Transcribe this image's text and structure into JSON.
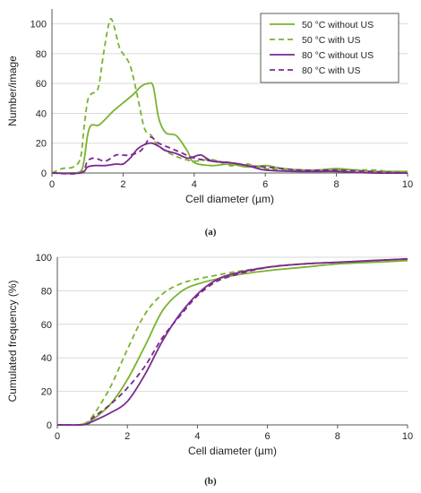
{
  "colors": {
    "green": "#7ab32e",
    "purple": "#7b2a8e",
    "axis": "#555555",
    "grid": "#d9d9d9"
  },
  "chart_data": [
    {
      "type": "line",
      "panel_label": "(a)",
      "xlabel": "Cell diameter (µm)",
      "ylabel": "Number/image",
      "xlim": [
        0,
        10
      ],
      "ylim": [
        0,
        110
      ],
      "xticks": [
        "0",
        "2",
        "4",
        "6",
        "8",
        "10"
      ],
      "yticks": [
        "0",
        "20",
        "40",
        "60",
        "80",
        "100"
      ],
      "grid": "horizontal",
      "legend_position": "top-right",
      "series": [
        {
          "name": "50 °C without US",
          "color": "#7ab32e",
          "dash": false,
          "x": [
            0,
            0.5,
            0.8,
            0.9,
            1.0,
            1.1,
            1.3,
            1.5,
            1.7,
            2.0,
            2.3,
            2.5,
            2.7,
            2.85,
            3.0,
            3.2,
            3.5,
            3.8,
            4.0,
            4.5,
            5.0,
            5.5,
            6.0,
            6.5,
            7.0,
            7.5,
            8.0,
            8.5,
            9.0,
            9.5,
            10.0
          ],
          "y": [
            0,
            0,
            1,
            8,
            25,
            32,
            32,
            36,
            41,
            47,
            53,
            58,
            60,
            58,
            37,
            27,
            25,
            15,
            7,
            5,
            6,
            4,
            5,
            3,
            2,
            2,
            3,
            2,
            1,
            1,
            1
          ]
        },
        {
          "name": "50 °C with US",
          "color": "#7ab32e",
          "dash": true,
          "x": [
            0,
            0.3,
            0.6,
            0.8,
            0.9,
            1.0,
            1.1,
            1.3,
            1.45,
            1.6,
            1.7,
            1.9,
            2.0,
            2.2,
            2.4,
            2.6,
            2.8,
            3.0,
            3.5,
            4.0,
            4.5,
            5.0,
            5.5,
            6.0,
            7.0,
            8.0,
            9.0,
            9.5,
            10.0
          ],
          "y": [
            0,
            3,
            4,
            10,
            30,
            48,
            53,
            57,
            80,
            100,
            102,
            84,
            80,
            72,
            52,
            30,
            25,
            18,
            11,
            8,
            9,
            5,
            6,
            3,
            2,
            2,
            2,
            1,
            1
          ]
        },
        {
          "name": "80 °C without US",
          "color": "#7b2a8e",
          "dash": false,
          "x": [
            0,
            0.8,
            1.0,
            1.2,
            1.5,
            1.8,
            2.0,
            2.2,
            2.4,
            2.6,
            2.8,
            3.0,
            3.2,
            3.5,
            3.8,
            4.0,
            4.2,
            4.5,
            5.0,
            5.5,
            6.0,
            7.0,
            8.0,
            9.0,
            10.0
          ],
          "y": [
            0,
            0,
            4,
            5,
            5,
            6,
            6,
            10,
            16,
            19,
            20,
            18,
            15,
            13,
            10,
            11,
            12,
            8,
            7,
            5,
            2,
            1,
            1,
            0,
            0
          ]
        },
        {
          "name": "80 °C with US",
          "color": "#7b2a8e",
          "dash": true,
          "x": [
            0,
            0.8,
            1.0,
            1.2,
            1.5,
            1.8,
            2.0,
            2.2,
            2.5,
            2.7,
            2.8,
            3.0,
            3.3,
            3.6,
            4.0,
            4.5,
            5.0,
            5.5,
            6.0,
            7.0,
            8.0,
            9.0,
            10.0
          ],
          "y": [
            0,
            0,
            8,
            10,
            8,
            12,
            12,
            12,
            15,
            22,
            24,
            20,
            17,
            14,
            10,
            8,
            7,
            5,
            4,
            2,
            2,
            1,
            0
          ]
        }
      ]
    },
    {
      "type": "line",
      "panel_label": "(b)",
      "xlabel": "Cell diameter (µm)",
      "ylabel": "Cumulated frequency (%)",
      "xlim": [
        0,
        10
      ],
      "ylim": [
        0,
        100
      ],
      "xticks": [
        "0",
        "2",
        "4",
        "6",
        "8",
        "10"
      ],
      "yticks": [
        "0",
        "20",
        "40",
        "60",
        "80",
        "100"
      ],
      "grid": "horizontal",
      "series": [
        {
          "color": "#7ab32e",
          "dash": false,
          "x": [
            0,
            0.6,
            0.8,
            1.0,
            1.5,
            2.0,
            2.5,
            3.0,
            3.5,
            4.0,
            5.0,
            6.0,
            7.0,
            8.0,
            9.0,
            10.0
          ],
          "y": [
            0,
            0,
            1,
            3,
            12,
            27,
            47,
            68,
            79,
            84,
            89,
            92,
            94,
            96,
            97,
            98
          ]
        },
        {
          "color": "#7ab32e",
          "dash": true,
          "x": [
            0,
            0.6,
            0.8,
            1.0,
            1.5,
            2.0,
            2.5,
            3.0,
            3.5,
            4.0,
            5.0,
            6.0,
            7.0,
            8.0,
            9.0,
            10.0
          ],
          "y": [
            0,
            0,
            1,
            5,
            22,
            45,
            66,
            78,
            84,
            87,
            91,
            94,
            96,
            97,
            98,
            99
          ]
        },
        {
          "color": "#7b2a8e",
          "dash": false,
          "x": [
            0,
            0.7,
            0.9,
            1.0,
            1.5,
            2.0,
            2.5,
            3.0,
            3.5,
            4.0,
            4.5,
            5.0,
            6.0,
            7.0,
            8.0,
            9.0,
            10.0
          ],
          "y": [
            0,
            0,
            1,
            2,
            7,
            14,
            30,
            50,
            66,
            78,
            86,
            90,
            94,
            96,
            97,
            98,
            99
          ]
        },
        {
          "color": "#7b2a8e",
          "dash": true,
          "x": [
            0,
            0.7,
            0.9,
            1.0,
            1.5,
            2.0,
            2.5,
            3.0,
            3.5,
            4.0,
            4.5,
            5.0,
            6.0,
            7.0,
            8.0,
            9.0,
            10.0
          ],
          "y": [
            0,
            0,
            1,
            4,
            12,
            22,
            35,
            52,
            65,
            77,
            85,
            89,
            94,
            96,
            97,
            98,
            99
          ]
        }
      ]
    }
  ]
}
